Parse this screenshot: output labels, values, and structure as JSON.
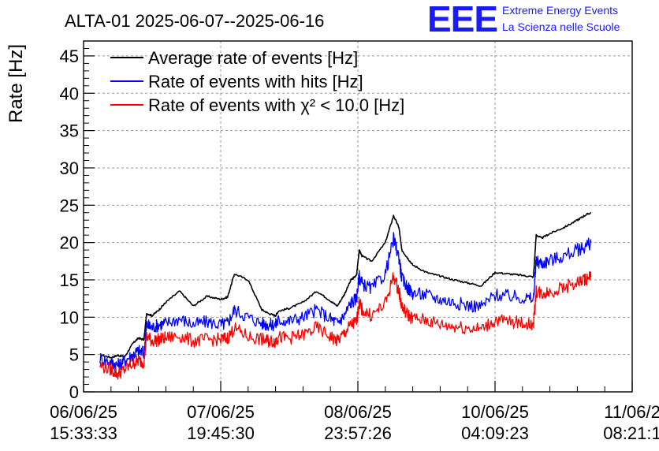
{
  "header": {
    "title": "ALTA-01 2025-06-07--2025-06-16",
    "logo_text": "EEE",
    "logo_line1": "Extreme Energy Events",
    "logo_line2": "La Scienza nelle Scuole"
  },
  "chart_data": {
    "type": "line",
    "title": "ALTA-01 2025-06-07--2025-06-16",
    "ylabel": "Rate [Hz]",
    "xlabel": "",
    "ylim": [
      0,
      47
    ],
    "yticks": [
      0,
      5,
      10,
      15,
      20,
      25,
      30,
      35,
      40,
      45
    ],
    "xlim": [
      0,
      4
    ],
    "xticks": [
      {
        "pos": 0,
        "date": "06/06/25",
        "time": "15:33:33"
      },
      {
        "pos": 1,
        "date": "07/06/25",
        "time": "19:45:30"
      },
      {
        "pos": 2,
        "date": "08/06/25",
        "time": "23:57:26"
      },
      {
        "pos": 3,
        "date": "10/06/25",
        "time": "04:09:23"
      },
      {
        "pos": 4,
        "date": "11/06/2",
        "time": "08:21:1"
      }
    ],
    "grid": true,
    "legend_position": "top-left",
    "series": [
      {
        "name": "Average rate of events [Hz]",
        "color": "#000000",
        "x": [
          0.12,
          0.2,
          0.25,
          0.3,
          0.36,
          0.4,
          0.44,
          0.46,
          0.5,
          0.55,
          0.6,
          0.7,
          0.8,
          0.9,
          1.0,
          1.05,
          1.1,
          1.2,
          1.3,
          1.35,
          1.4,
          1.42,
          1.5,
          1.6,
          1.7,
          1.8,
          1.85,
          1.9,
          1.95,
          1.99,
          2.01,
          2.03,
          2.1,
          2.2,
          2.26,
          2.3,
          2.32,
          2.36,
          2.4,
          2.5,
          2.6,
          2.7,
          2.8,
          2.9,
          3.0,
          3.1,
          3.2,
          3.28,
          3.3,
          3.34,
          3.4,
          3.5,
          3.6,
          3.65,
          3.7
        ],
        "y": [
          5.0,
          4.6,
          4.9,
          4.7,
          6.5,
          7.2,
          7.0,
          10.5,
          10.2,
          11.0,
          12.0,
          13.5,
          11.5,
          12.8,
          12.4,
          12.7,
          15.8,
          15.0,
          11.0,
          10.5,
          10.2,
          10.8,
          11.2,
          12.0,
          13.5,
          12.2,
          11.5,
          13.0,
          15.0,
          15.6,
          19.0,
          18.2,
          17.5,
          20.0,
          23.6,
          22.0,
          19.0,
          18.0,
          17.0,
          16.0,
          15.5,
          15.0,
          14.6,
          14.2,
          16.0,
          15.8,
          15.6,
          15.4,
          21.0,
          20.6,
          21.2,
          22.0,
          23.0,
          23.6,
          24.0
        ]
      },
      {
        "name": "Rate of events with hits [Hz]",
        "color": "#0000ff",
        "x": [
          0.12,
          0.2,
          0.25,
          0.3,
          0.36,
          0.4,
          0.44,
          0.46,
          0.5,
          0.55,
          0.6,
          0.7,
          0.8,
          0.9,
          1.0,
          1.05,
          1.1,
          1.2,
          1.3,
          1.35,
          1.4,
          1.42,
          1.5,
          1.6,
          1.7,
          1.8,
          1.85,
          1.9,
          1.95,
          1.99,
          2.01,
          2.03,
          2.1,
          2.2,
          2.26,
          2.3,
          2.32,
          2.36,
          2.4,
          2.5,
          2.6,
          2.7,
          2.8,
          2.9,
          3.0,
          3.1,
          3.2,
          3.28,
          3.3,
          3.34,
          3.4,
          3.5,
          3.6,
          3.65,
          3.7
        ],
        "y": [
          4.5,
          4.0,
          3.6,
          4.2,
          5.0,
          5.5,
          5.2,
          9.0,
          8.6,
          9.0,
          9.2,
          9.8,
          9.0,
          9.4,
          9.0,
          9.2,
          11.0,
          10.0,
          9.2,
          9.0,
          9.0,
          9.6,
          9.5,
          10.0,
          11.0,
          9.8,
          9.2,
          10.2,
          12.0,
          12.5,
          15.5,
          14.5,
          13.8,
          15.8,
          20.5,
          18.0,
          15.2,
          14.0,
          13.2,
          13.0,
          12.4,
          12.0,
          11.6,
          11.4,
          13.0,
          12.8,
          12.6,
          12.4,
          17.5,
          17.2,
          17.6,
          18.2,
          19.0,
          19.4,
          20.0
        ]
      },
      {
        "name": "Rate of events with χ² < 10.0 [Hz]",
        "color": "#ff0000",
        "x": [
          0.12,
          0.2,
          0.25,
          0.3,
          0.36,
          0.4,
          0.44,
          0.46,
          0.5,
          0.55,
          0.6,
          0.7,
          0.8,
          0.9,
          1.0,
          1.05,
          1.1,
          1.2,
          1.3,
          1.35,
          1.4,
          1.42,
          1.5,
          1.6,
          1.7,
          1.8,
          1.85,
          1.9,
          1.95,
          1.99,
          2.01,
          2.03,
          2.1,
          2.2,
          2.26,
          2.3,
          2.32,
          2.36,
          2.4,
          2.5,
          2.6,
          2.7,
          2.8,
          2.9,
          3.0,
          3.1,
          3.2,
          3.28,
          3.3,
          3.34,
          3.4,
          3.5,
          3.6,
          3.65,
          3.7
        ],
        "y": [
          3.5,
          3.0,
          2.4,
          3.0,
          3.8,
          4.2,
          4.0,
          7.5,
          6.8,
          7.0,
          7.2,
          7.5,
          6.8,
          7.0,
          7.0,
          7.2,
          8.5,
          7.4,
          7.0,
          6.8,
          6.8,
          7.3,
          7.2,
          7.6,
          8.6,
          7.4,
          6.8,
          7.8,
          9.0,
          9.3,
          12.0,
          11.0,
          10.2,
          11.8,
          15.5,
          13.5,
          11.4,
          10.4,
          9.8,
          9.6,
          9.0,
          8.8,
          8.6,
          8.4,
          9.6,
          9.4,
          9.2,
          9.0,
          13.5,
          13.2,
          13.4,
          14.0,
          14.6,
          15.0,
          15.4
        ]
      }
    ]
  }
}
